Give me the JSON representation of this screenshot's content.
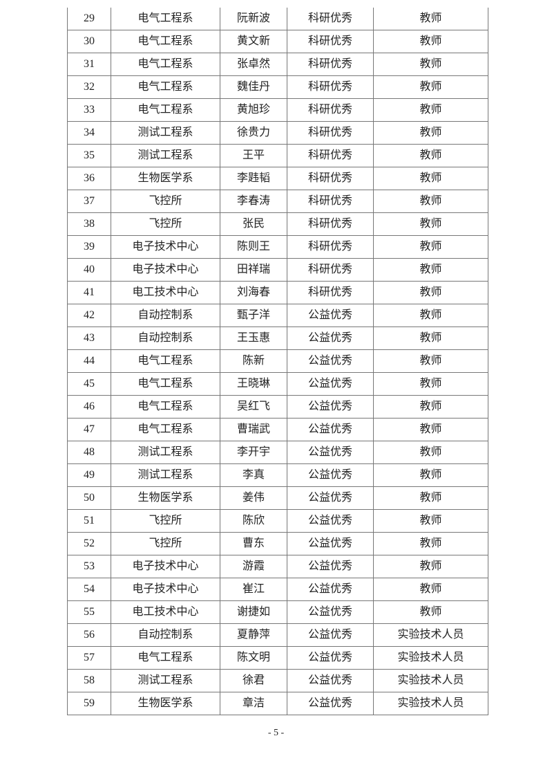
{
  "rows": [
    [
      "29",
      "电气工程系",
      "阮新波",
      "科研优秀",
      "教师"
    ],
    [
      "30",
      "电气工程系",
      "黄文新",
      "科研优秀",
      "教师"
    ],
    [
      "31",
      "电气工程系",
      "张卓然",
      "科研优秀",
      "教师"
    ],
    [
      "32",
      "电气工程系",
      "魏佳丹",
      "科研优秀",
      "教师"
    ],
    [
      "33",
      "电气工程系",
      "黄旭珍",
      "科研优秀",
      "教师"
    ],
    [
      "34",
      "测试工程系",
      "徐贵力",
      "科研优秀",
      "教师"
    ],
    [
      "35",
      "测试工程系",
      "王平",
      "科研优秀",
      "教师"
    ],
    [
      "36",
      "生物医学系",
      "李韪韬",
      "科研优秀",
      "教师"
    ],
    [
      "37",
      "飞控所",
      "李春涛",
      "科研优秀",
      "教师"
    ],
    [
      "38",
      "飞控所",
      "张民",
      "科研优秀",
      "教师"
    ],
    [
      "39",
      "电子技术中心",
      "陈则王",
      "科研优秀",
      "教师"
    ],
    [
      "40",
      "电子技术中心",
      "田祥瑞",
      "科研优秀",
      "教师"
    ],
    [
      "41",
      "电工技术中心",
      "刘海春",
      "科研优秀",
      "教师"
    ],
    [
      "42",
      "自动控制系",
      "甄子洋",
      "公益优秀",
      "教师"
    ],
    [
      "43",
      "自动控制系",
      "王玉惠",
      "公益优秀",
      "教师"
    ],
    [
      "44",
      "电气工程系",
      "陈新",
      "公益优秀",
      "教师"
    ],
    [
      "45",
      "电气工程系",
      "王晓琳",
      "公益优秀",
      "教师"
    ],
    [
      "46",
      "电气工程系",
      "吴红飞",
      "公益优秀",
      "教师"
    ],
    [
      "47",
      "电气工程系",
      "曹瑞武",
      "公益优秀",
      "教师"
    ],
    [
      "48",
      "测试工程系",
      "李开宇",
      "公益优秀",
      "教师"
    ],
    [
      "49",
      "测试工程系",
      "李真",
      "公益优秀",
      "教师"
    ],
    [
      "50",
      "生物医学系",
      "姜伟",
      "公益优秀",
      "教师"
    ],
    [
      "51",
      "飞控所",
      "陈欣",
      "公益优秀",
      "教师"
    ],
    [
      "52",
      "飞控所",
      "曹东",
      "公益优秀",
      "教师"
    ],
    [
      "53",
      "电子技术中心",
      "游霞",
      "公益优秀",
      "教师"
    ],
    [
      "54",
      "电子技术中心",
      "崔江",
      "公益优秀",
      "教师"
    ],
    [
      "55",
      "电工技术中心",
      "谢捷如",
      "公益优秀",
      "教师"
    ],
    [
      "56",
      "自动控制系",
      "夏静萍",
      "公益优秀",
      "实验技术人员"
    ],
    [
      "57",
      "电气工程系",
      "陈文明",
      "公益优秀",
      "实验技术人员"
    ],
    [
      "58",
      "测试工程系",
      "徐君",
      "公益优秀",
      "实验技术人员"
    ],
    [
      "59",
      "生物医学系",
      "章洁",
      "公益优秀",
      "实验技术人员"
    ]
  ],
  "page_number": "- 5 -"
}
